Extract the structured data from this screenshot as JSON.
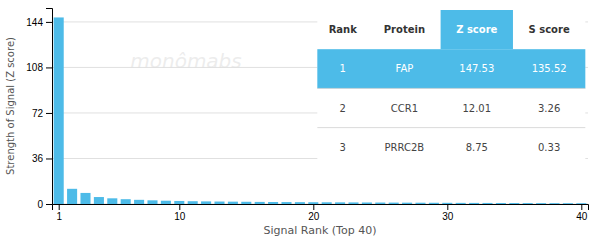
{
  "chart_data": {
    "type": "bar",
    "xlabel": "Signal Rank (Top 40)",
    "ylabel": "Strength of Signal (Z score)",
    "x": [
      1,
      2,
      3,
      4,
      5,
      6,
      7,
      8,
      9,
      10,
      11,
      12,
      13,
      14,
      15,
      16,
      17,
      18,
      19,
      20,
      21,
      22,
      23,
      24,
      25,
      26,
      27,
      28,
      29,
      30,
      31,
      32,
      33,
      34,
      35,
      36,
      37,
      38,
      39,
      40
    ],
    "values": [
      147.53,
      12.01,
      8.75,
      5.5,
      4.5,
      3.8,
      3.3,
      2.9,
      2.6,
      2.4,
      2.2,
      2.05,
      1.95,
      1.85,
      1.75,
      1.65,
      1.58,
      1.52,
      1.46,
      1.4,
      1.35,
      1.3,
      1.25,
      1.2,
      1.15,
      1.1,
      1.05,
      1.01,
      0.97,
      0.93,
      0.89,
      0.86,
      0.83,
      0.8,
      0.77,
      0.74,
      0.71,
      0.68,
      0.65,
      0.62
    ],
    "color": "#4DBBE8",
    "xlim": [
      0.5,
      40.5
    ],
    "xticks": [
      1,
      10,
      20,
      30,
      40
    ],
    "ylim": [
      0,
      155
    ],
    "yticks": [
      0,
      36,
      72,
      108,
      144
    ],
    "grid": true,
    "watermark": "monômabs",
    "table": {
      "columns": [
        "Rank",
        "Protein",
        "Z score",
        "S score"
      ],
      "rows": [
        [
          "1",
          "FAP",
          "147.53",
          "135.52"
        ],
        [
          "2",
          "CCR1",
          "12.01",
          "3.26"
        ],
        [
          "3",
          "PRRC2B",
          "8.75",
          "0.33"
        ]
      ]
    }
  }
}
